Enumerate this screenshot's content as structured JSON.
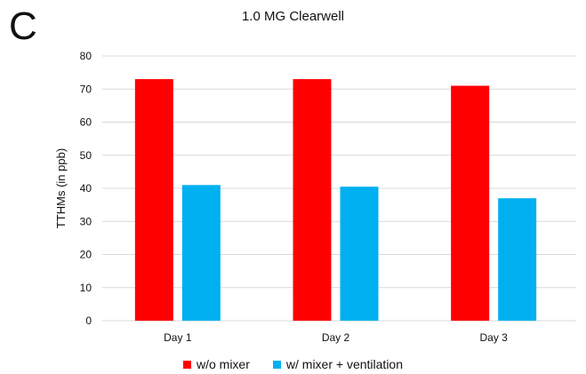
{
  "panel_label": "C",
  "chart_data": {
    "type": "bar",
    "title": "1.0 MG Clearwell",
    "xlabel": "",
    "ylabel": "TTHMs (in ppb)",
    "ylim": [
      0,
      80
    ],
    "yticks": [
      0,
      10,
      20,
      30,
      40,
      50,
      60,
      70,
      80
    ],
    "grid": true,
    "legend_position": "bottom",
    "categories": [
      "Day 1",
      "Day 2",
      "Day 3"
    ],
    "series": [
      {
        "name": "w/o mixer",
        "color": "#ff0000",
        "values": [
          73,
          73,
          71
        ]
      },
      {
        "name": "w/ mixer + ventilation",
        "color": "#00b0f0",
        "values": [
          41,
          40.5,
          37
        ]
      }
    ]
  }
}
